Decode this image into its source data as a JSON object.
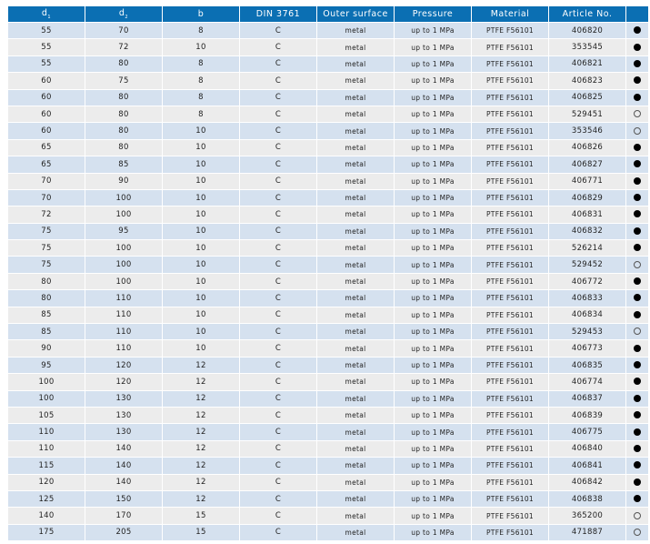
{
  "header": {
    "d1": "d",
    "d1_sub": "1",
    "d2": "d",
    "d2_sub": "2",
    "b": "b",
    "din": "DIN 3761",
    "outer": "Outer surface",
    "pressure": "Pressure",
    "material": "Material",
    "article": "Article No."
  },
  "rows": [
    {
      "d1": "55",
      "d2": "70",
      "b": "8",
      "din": "C",
      "outer": "metal",
      "pressure": "up to 1 MPa",
      "material": "PTFE F56101",
      "article": "406820",
      "availability": "filled"
    },
    {
      "d1": "55",
      "d2": "72",
      "b": "10",
      "din": "C",
      "outer": "metal",
      "pressure": "up to 1 MPa",
      "material": "PTFE F56101",
      "article": "353545",
      "availability": "filled"
    },
    {
      "d1": "55",
      "d2": "80",
      "b": "8",
      "din": "C",
      "outer": "metal",
      "pressure": "up to 1 MPa",
      "material": "PTFE F56101",
      "article": "406821",
      "availability": "filled"
    },
    {
      "d1": "60",
      "d2": "75",
      "b": "8",
      "din": "C",
      "outer": "metal",
      "pressure": "up to 1 MPa",
      "material": "PTFE F56101",
      "article": "406823",
      "availability": "filled"
    },
    {
      "d1": "60",
      "d2": "80",
      "b": "8",
      "din": "C",
      "outer": "metal",
      "pressure": "up to 1 MPa",
      "material": "PTFE F56101",
      "article": "406825",
      "availability": "filled"
    },
    {
      "d1": "60",
      "d2": "80",
      "b": "8",
      "din": "C",
      "outer": "metal",
      "pressure": "up to 1 MPa",
      "material": "PTFE F56101",
      "article": "529451",
      "availability": "open"
    },
    {
      "d1": "60",
      "d2": "80",
      "b": "10",
      "din": "C",
      "outer": "metal",
      "pressure": "up to 1 MPa",
      "material": "PTFE F56101",
      "article": "353546",
      "availability": "open"
    },
    {
      "d1": "65",
      "d2": "80",
      "b": "10",
      "din": "C",
      "outer": "metal",
      "pressure": "up to 1 MPa",
      "material": "PTFE F56101",
      "article": "406826",
      "availability": "filled"
    },
    {
      "d1": "65",
      "d2": "85",
      "b": "10",
      "din": "C",
      "outer": "metal",
      "pressure": "up to 1 MPa",
      "material": "PTFE F56101",
      "article": "406827",
      "availability": "filled"
    },
    {
      "d1": "70",
      "d2": "90",
      "b": "10",
      "din": "C",
      "outer": "metal",
      "pressure": "up to 1 MPa",
      "material": "PTFE F56101",
      "article": "406771",
      "availability": "filled"
    },
    {
      "d1": "70",
      "d2": "100",
      "b": "10",
      "din": "C",
      "outer": "metal",
      "pressure": "up to 1 MPa",
      "material": "PTFE F56101",
      "article": "406829",
      "availability": "filled"
    },
    {
      "d1": "72",
      "d2": "100",
      "b": "10",
      "din": "C",
      "outer": "metal",
      "pressure": "up to 1 MPa",
      "material": "PTFE F56101",
      "article": "406831",
      "availability": "filled"
    },
    {
      "d1": "75",
      "d2": "95",
      "b": "10",
      "din": "C",
      "outer": "metal",
      "pressure": "up to 1 MPa",
      "material": "PTFE F56101",
      "article": "406832",
      "availability": "filled"
    },
    {
      "d1": "75",
      "d2": "100",
      "b": "10",
      "din": "C",
      "outer": "metal",
      "pressure": "up to 1 MPa",
      "material": "PTFE F56101",
      "article": "526214",
      "availability": "filled"
    },
    {
      "d1": "75",
      "d2": "100",
      "b": "10",
      "din": "C",
      "outer": "metal",
      "pressure": "up to 1 MPa",
      "material": "PTFE F56101",
      "article": "529452",
      "availability": "open"
    },
    {
      "d1": "80",
      "d2": "100",
      "b": "10",
      "din": "C",
      "outer": "metal",
      "pressure": "up to 1 MPa",
      "material": "PTFE F56101",
      "article": "406772",
      "availability": "filled"
    },
    {
      "d1": "80",
      "d2": "110",
      "b": "10",
      "din": "C",
      "outer": "metal",
      "pressure": "up to 1 MPa",
      "material": "PTFE F56101",
      "article": "406833",
      "availability": "filled"
    },
    {
      "d1": "85",
      "d2": "110",
      "b": "10",
      "din": "C",
      "outer": "metal",
      "pressure": "up to 1 MPa",
      "material": "PTFE F56101",
      "article": "406834",
      "availability": "filled"
    },
    {
      "d1": "85",
      "d2": "110",
      "b": "10",
      "din": "C",
      "outer": "metal",
      "pressure": "up to 1 MPa",
      "material": "PTFE F56101",
      "article": "529453",
      "availability": "open"
    },
    {
      "d1": "90",
      "d2": "110",
      "b": "10",
      "din": "C",
      "outer": "metal",
      "pressure": "up to 1 MPa",
      "material": "PTFE F56101",
      "article": "406773",
      "availability": "filled"
    },
    {
      "d1": "95",
      "d2": "120",
      "b": "12",
      "din": "C",
      "outer": "metal",
      "pressure": "up to 1 MPa",
      "material": "PTFE F56101",
      "article": "406835",
      "availability": "filled"
    },
    {
      "d1": "100",
      "d2": "120",
      "b": "12",
      "din": "C",
      "outer": "metal",
      "pressure": "up to 1 MPa",
      "material": "PTFE F56101",
      "article": "406774",
      "availability": "filled"
    },
    {
      "d1": "100",
      "d2": "130",
      "b": "12",
      "din": "C",
      "outer": "metal",
      "pressure": "up to 1 MPa",
      "material": "PTFE F56101",
      "article": "406837",
      "availability": "filled"
    },
    {
      "d1": "105",
      "d2": "130",
      "b": "12",
      "din": "C",
      "outer": "metal",
      "pressure": "up to 1 MPa",
      "material": "PTFE F56101",
      "article": "406839",
      "availability": "filled"
    },
    {
      "d1": "110",
      "d2": "130",
      "b": "12",
      "din": "C",
      "outer": "metal",
      "pressure": "up to 1 MPa",
      "material": "PTFE F56101",
      "article": "406775",
      "availability": "filled"
    },
    {
      "d1": "110",
      "d2": "140",
      "b": "12",
      "din": "C",
      "outer": "metal",
      "pressure": "up to 1 MPa",
      "material": "PTFE F56101",
      "article": "406840",
      "availability": "filled"
    },
    {
      "d1": "115",
      "d2": "140",
      "b": "12",
      "din": "C",
      "outer": "metal",
      "pressure": "up to 1 MPa",
      "material": "PTFE F56101",
      "article": "406841",
      "availability": "filled"
    },
    {
      "d1": "120",
      "d2": "140",
      "b": "12",
      "din": "C",
      "outer": "metal",
      "pressure": "up to 1 MPa",
      "material": "PTFE F56101",
      "article": "406842",
      "availability": "filled"
    },
    {
      "d1": "125",
      "d2": "150",
      "b": "12",
      "din": "C",
      "outer": "metal",
      "pressure": "up to 1 MPa",
      "material": "PTFE F56101",
      "article": "406838",
      "availability": "filled"
    },
    {
      "d1": "140",
      "d2": "170",
      "b": "15",
      "din": "C",
      "outer": "metal",
      "pressure": "up to 1 MPa",
      "material": "PTFE F56101",
      "article": "365200",
      "availability": "open"
    },
    {
      "d1": "175",
      "d2": "205",
      "b": "15",
      "din": "C",
      "outer": "metal",
      "pressure": "up to 1 MPa",
      "material": "PTFE F56101",
      "article": "471887",
      "availability": "open"
    }
  ],
  "colors": {
    "header": "#0b6fb3",
    "row_odd": "#d5e1ef",
    "row_even": "#ececec"
  }
}
